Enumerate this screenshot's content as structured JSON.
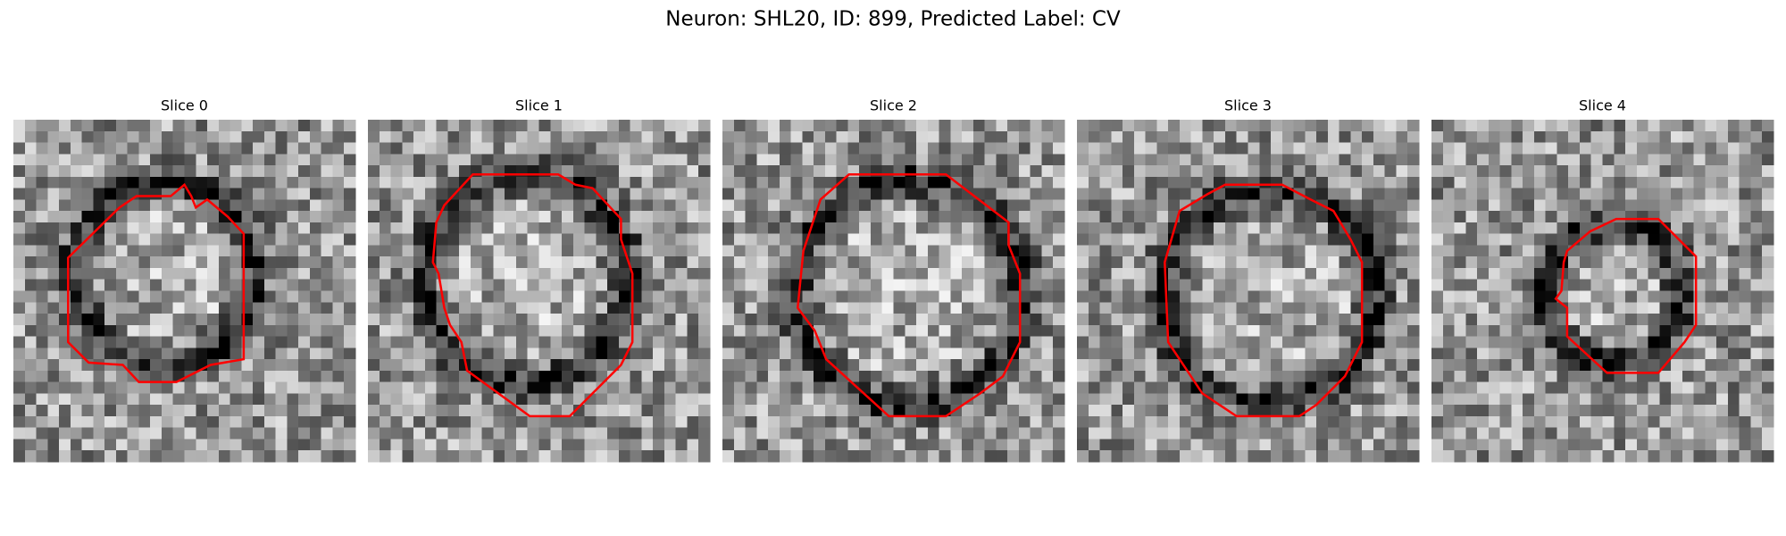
{
  "title": "Neuron: SHL20, ID: 899, Predicted Label: CV",
  "panels": [
    {
      "title": "Slice 0"
    },
    {
      "title": "Slice 1"
    },
    {
      "title": "Slice 2"
    },
    {
      "title": "Slice 3"
    },
    {
      "title": "Slice 4"
    }
  ]
}
